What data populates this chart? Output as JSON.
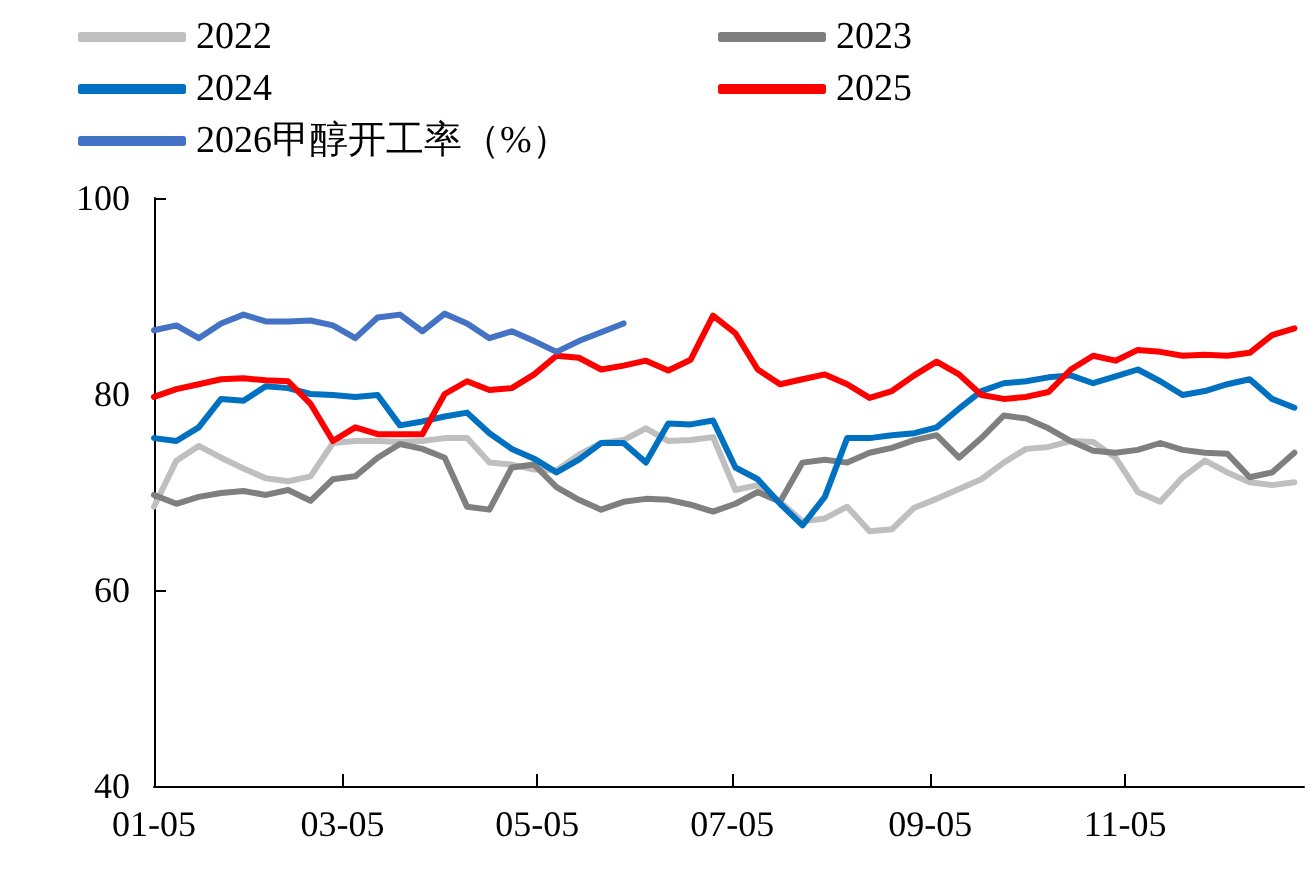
{
  "chart_data": {
    "type": "line",
    "x": [
      "--01-05",
      "--01-12",
      "--01-19",
      "--01-26",
      "--02-02",
      "--02-09",
      "--02-16",
      "--02-23",
      "--03-02",
      "--03-09",
      "--03-16",
      "--03-23",
      "--03-30",
      "--04-06",
      "--04-13",
      "--04-20",
      "--04-27",
      "--05-04",
      "--05-11",
      "--05-18",
      "--05-25",
      "--06-01",
      "--06-08",
      "--06-15",
      "--06-22",
      "--06-29",
      "--07-06",
      "--07-13",
      "--07-20",
      "--07-27",
      "--08-03",
      "--08-10",
      "--08-17",
      "--08-24",
      "--08-31",
      "--09-07",
      "--09-14",
      "--09-21",
      "--09-28",
      "--10-05",
      "--10-12",
      "--10-19",
      "--10-26",
      "--11-02",
      "--11-09",
      "--11-16",
      "--11-23",
      "--11-30",
      "--12-07",
      "--12-14",
      "--12-21",
      "--12-28"
    ],
    "series": [
      {
        "name": "2022",
        "color": "#bfbfbf",
        "values": [
          68.5,
          73.2,
          74.7,
          73.5,
          72.4,
          71.4,
          71.1,
          71.6,
          75.0,
          75.2,
          75.2,
          75.1,
          75.2,
          75.5,
          75.5,
          73.0,
          72.8,
          72.3,
          72.2,
          73.8,
          75.0,
          75.3,
          76.5,
          75.2,
          75.3,
          75.6,
          70.2,
          70.7,
          69.0,
          67.0,
          67.3,
          68.5,
          66.0,
          66.2,
          68.4,
          69.3,
          70.3,
          71.3,
          73.0,
          74.4,
          74.6,
          75.2,
          75.1,
          73.5,
          70.0,
          69.0,
          71.5,
          73.2,
          72.0,
          71.0,
          70.7,
          71.0
        ]
      },
      {
        "name": "2023",
        "color": "#7f7f7f",
        "values": [
          69.7,
          68.8,
          69.5,
          69.9,
          70.1,
          69.7,
          70.2,
          69.1,
          71.3,
          71.6,
          73.5,
          74.9,
          74.4,
          73.5,
          68.5,
          68.2,
          72.5,
          72.8,
          70.5,
          69.2,
          68.2,
          69.0,
          69.3,
          69.2,
          68.7,
          68.0,
          68.8,
          70.0,
          69.0,
          73.0,
          73.3,
          73.0,
          74.0,
          74.5,
          75.3,
          75.8,
          73.5,
          75.5,
          77.8,
          77.5,
          76.5,
          75.2,
          74.2,
          74.0,
          74.3,
          75.0,
          74.3,
          74.0,
          73.9,
          71.5,
          72.0,
          74.0
        ]
      },
      {
        "name": "2024",
        "color": "#0070c0",
        "values": [
          75.5,
          75.2,
          76.6,
          79.5,
          79.3,
          80.8,
          80.6,
          80.0,
          79.9,
          79.7,
          79.9,
          76.8,
          77.2,
          77.7,
          78.1,
          76.0,
          74.4,
          73.4,
          72.0,
          73.3,
          75.0,
          75.0,
          73.0,
          77.0,
          76.9,
          77.3,
          72.5,
          71.3,
          68.8,
          66.6,
          69.5,
          75.5,
          75.5,
          75.8,
          76.0,
          76.6,
          78.5,
          80.3,
          81.1,
          81.3,
          81.7,
          81.9,
          81.1,
          81.8,
          82.5,
          81.3,
          79.9,
          80.3,
          81.0,
          81.5,
          79.5,
          78.6
        ]
      },
      {
        "name": "2025",
        "color": "#ff0000",
        "values": [
          79.7,
          80.5,
          81.0,
          81.5,
          81.6,
          81.4,
          81.3,
          79.0,
          75.2,
          76.6,
          75.9,
          75.9,
          75.9,
          80.0,
          81.3,
          80.4,
          80.6,
          82.0,
          83.9,
          83.7,
          82.5,
          82.9,
          83.4,
          82.4,
          83.5,
          88.0,
          86.2,
          82.5,
          81.0,
          81.5,
          82.0,
          81.0,
          79.6,
          80.3,
          81.9,
          83.3,
          82.0,
          79.9,
          79.5,
          79.7,
          80.2,
          82.5,
          83.9,
          83.4,
          84.5,
          84.3,
          83.9,
          84.0,
          83.9,
          84.2,
          86.0,
          86.7
        ]
      },
      {
        "name": "2026甲醇开工率（%）",
        "color": "#4472c4",
        "values": [
          86.5,
          87.0,
          85.7,
          87.2,
          88.1,
          87.4,
          87.4,
          87.5,
          87.0,
          85.7,
          87.8,
          88.1,
          86.4,
          88.2,
          87.2,
          85.7,
          86.4,
          85.4,
          84.3,
          85.4,
          86.3,
          87.2,
          null,
          null,
          null,
          null,
          null,
          null,
          null,
          null,
          null,
          null,
          null,
          null,
          null,
          null,
          null,
          null,
          null,
          null,
          null,
          null,
          null,
          null,
          null,
          null,
          null,
          null,
          null,
          null,
          null,
          null
        ]
      }
    ],
    "xlim": [
      "--01-05",
      "--12-31"
    ],
    "xticks": [
      {
        "value": "--01-05",
        "label": "01-05"
      },
      {
        "value": "--03-05",
        "label": "03-05"
      },
      {
        "value": "--05-05",
        "label": "05-05"
      },
      {
        "value": "--07-05",
        "label": "07-05"
      },
      {
        "value": "--09-05",
        "label": "09-05"
      },
      {
        "value": "--11-05",
        "label": "11-05"
      }
    ],
    "ylim": [
      40,
      100
    ],
    "yticks": [
      40,
      60,
      80,
      100
    ],
    "grid": false,
    "legend": "top",
    "marker": "none",
    "line_style": "solid"
  }
}
